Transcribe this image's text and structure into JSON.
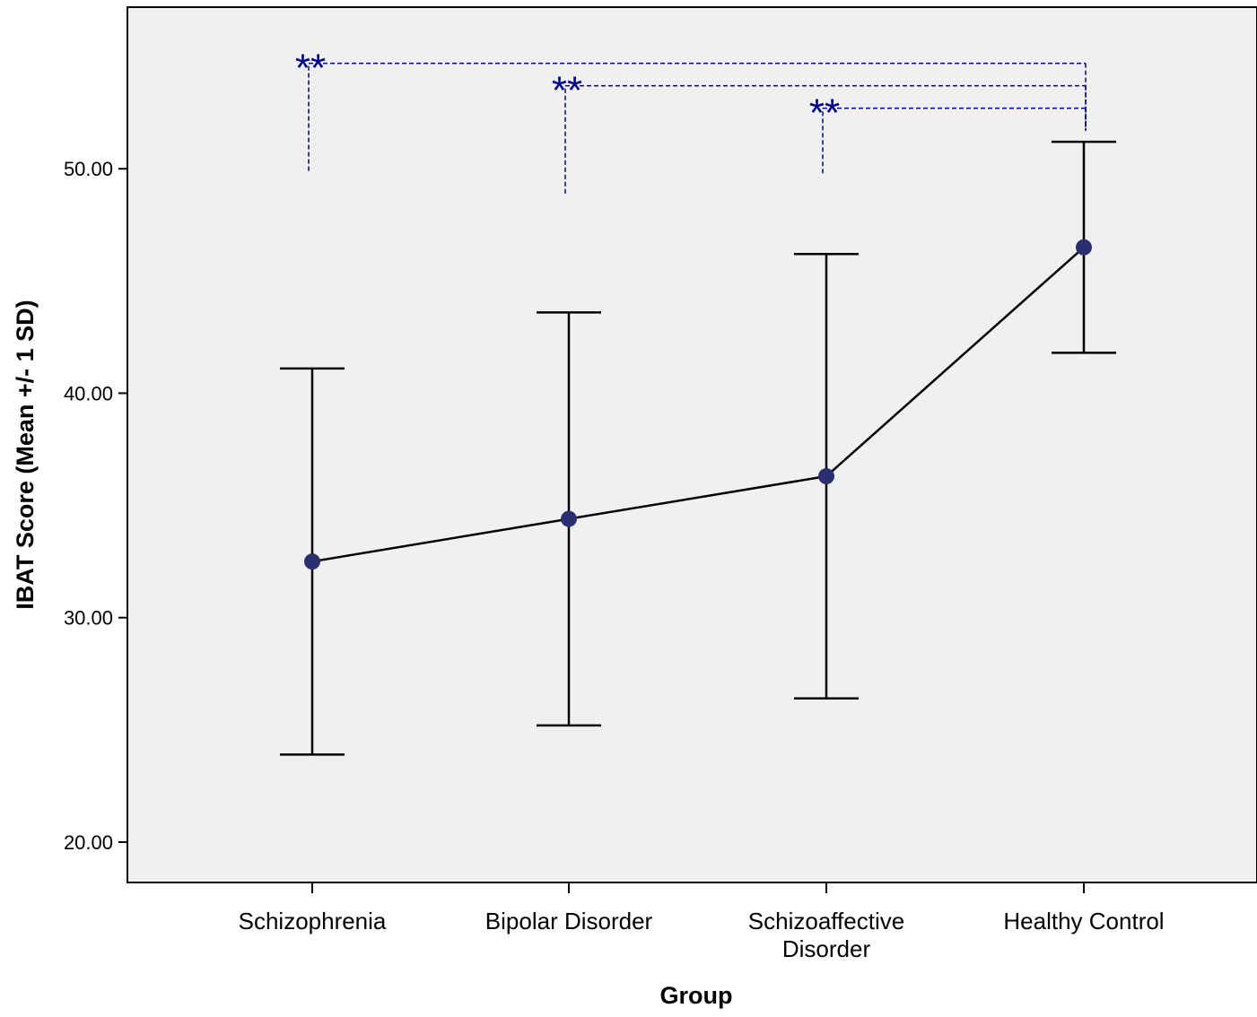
{
  "chart_data": {
    "type": "line",
    "title": "",
    "xlabel": "Group",
    "ylabel": "IBAT Score (Mean +/- 1 SD)",
    "categories": [
      "Schizophrenia",
      "Bipolar Disorder",
      "Schizoaffective Disorder",
      "Healthy Control"
    ],
    "category_label_lines": [
      [
        "Schizophrenia"
      ],
      [
        "Bipolar Disorder"
      ],
      [
        "Schizoaffective",
        "Disorder"
      ],
      [
        "Healthy Control"
      ]
    ],
    "series": [
      {
        "mean": [
          32.5,
          34.4,
          36.3,
          46.5
        ],
        "lower": [
          23.9,
          25.2,
          26.4,
          41.8
        ],
        "upper": [
          41.1,
          43.6,
          46.2,
          51.2
        ]
      }
    ],
    "ylim": [
      18.2,
      57.2
    ],
    "yticks": [
      20,
      30,
      40,
      50
    ],
    "ytick_labels": [
      "20.00",
      "30.00",
      "40.00",
      "50.00"
    ],
    "grid": false,
    "legend": "none",
    "annotations": [
      {
        "from_category": 0,
        "to_category": 3,
        "label": "**",
        "level": 54.7,
        "start_top": 49.9,
        "end_bottom": 51.7
      },
      {
        "from_category": 1,
        "to_category": 3,
        "label": "**",
        "level": 53.7,
        "start_top": 48.9,
        "end_bottom": 51.7
      },
      {
        "from_category": 2,
        "to_category": 3,
        "label": "**",
        "level": 52.7,
        "start_top": 49.8,
        "end_bottom": 51.7
      }
    ]
  },
  "colors": {
    "plot_background": "#f0f0f0",
    "axis": "#000000",
    "line": "#000000",
    "marker": "#2b2f72",
    "annotation": "#00008b"
  }
}
